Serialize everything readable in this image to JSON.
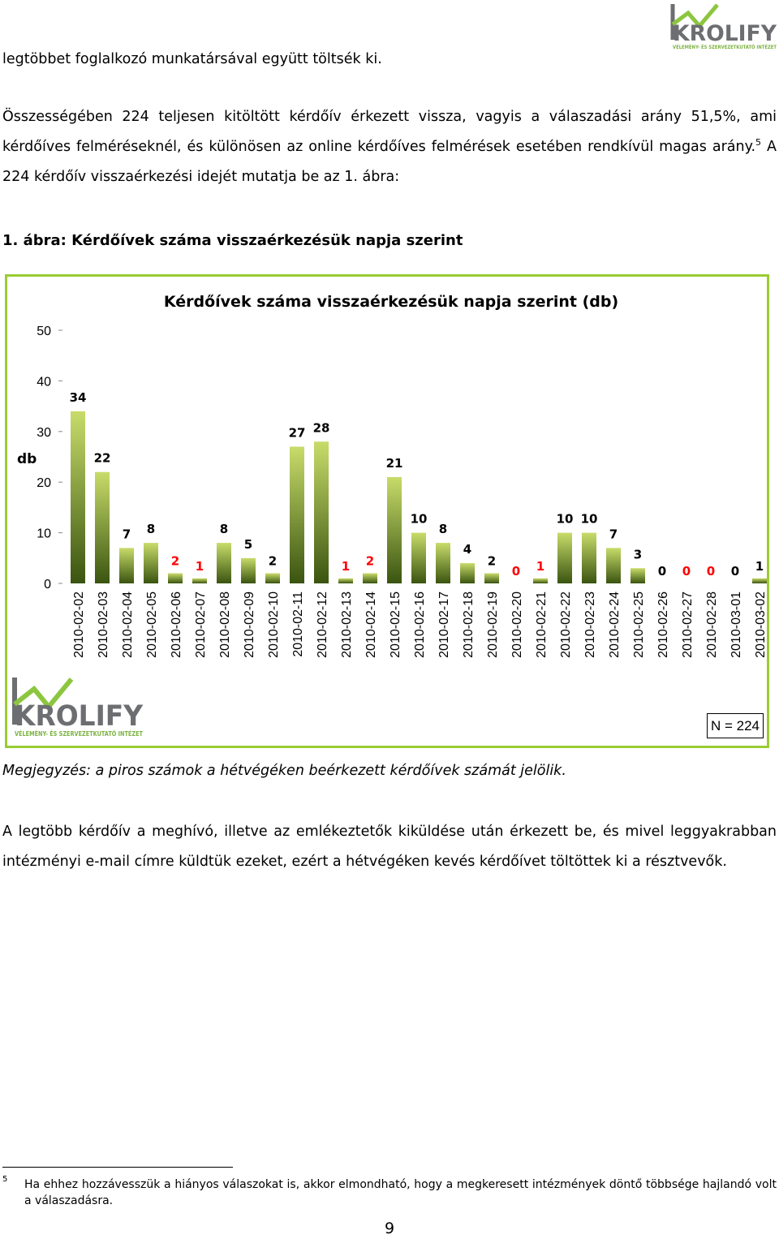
{
  "logo": {
    "name": "KROLIFY",
    "tagline": "VÉLEMÉNY- ÉS SZERVEZETKUTATÓ INTÉZET",
    "colors": {
      "gray": "#6d6e71",
      "green": "#8cc63f",
      "tagline": "#7cb342"
    }
  },
  "text": {
    "line1": "legtöbbet foglalkozó munkatársával együtt töltsék ki.",
    "para1_before": "Összességében 224 teljesen kitöltött kérdőív érkezett vissza, vagyis a válaszadási arány 51,5%, ami kérdőíves felméréseknél, és különösen az online kérdőíves felmérések esetében rendkívül magas arány.",
    "para1_sup": "5",
    "para1_after": " A 224 kérdőív visszaérkezési idejét mutatja be az 1. ábra:",
    "figure_caption": "1. ábra: Kérdőívek száma visszaérkezésük napja szerint",
    "note": "Megjegyzés: a piros számok a hétvégéken beérkezett kérdőívek számát jelölik.",
    "para2": "A legtöbb kérdőív a meghívó, illetve az emlékeztetők kiküldése után érkezett be, és mivel leggyakrabban intézményi e-mail címre küldtük ezeket, ezért a hétvégéken kevés kérdőívet töltöttek ki a résztvevők.",
    "footnote_number": "5",
    "footnote_text": "Ha ehhez hozzávesszük a hiányos válaszokat is, akkor elmondható, hogy a megkeresett intézmények döntő többsége hajlandó volt a válaszadásra.",
    "page_number": "9"
  },
  "chart_data": {
    "type": "bar",
    "title": "Kérdőívek száma visszaérkezésük napja szerint (db)",
    "ylabel": "db",
    "xlabel": "",
    "ylim": [
      0,
      50
    ],
    "yticks": [
      0,
      10,
      20,
      30,
      40,
      50
    ],
    "grid": false,
    "n_label": "N = 224",
    "categories": [
      "2010-02-02",
      "2010-02-03",
      "2010-02-04",
      "2010-02-05",
      "2010-02-06",
      "2010-02-07",
      "2010-02-08",
      "2010-02-09",
      "2010-02-10",
      "2010-02-11",
      "2010-02-12",
      "2010-02-13",
      "2010-02-14",
      "2010-02-15",
      "2010-02-16",
      "2010-02-17",
      "2010-02-18",
      "2010-02-19",
      "2010-02-20",
      "2010-02-21",
      "2010-02-22",
      "2010-02-23",
      "2010-02-24",
      "2010-02-25",
      "2010-02-26",
      "2010-02-27",
      "2010-02-28",
      "2010-03-01",
      "2010-03-02"
    ],
    "values": [
      34,
      22,
      7,
      8,
      2,
      1,
      8,
      5,
      2,
      27,
      28,
      1,
      2,
      21,
      10,
      8,
      4,
      2,
      0,
      1,
      10,
      10,
      7,
      3,
      0,
      0,
      0,
      0,
      1
    ],
    "weekend": [
      false,
      false,
      false,
      false,
      true,
      true,
      false,
      false,
      false,
      false,
      false,
      true,
      true,
      false,
      false,
      false,
      false,
      false,
      true,
      true,
      false,
      false,
      false,
      false,
      false,
      true,
      true,
      false,
      false
    ],
    "colors": {
      "bar_top": "#c8dc6a",
      "bar_bottom": "#3a5410",
      "weekday_label": "#000000",
      "weekend_label": "#ff0000",
      "frame": "#99cc33"
    }
  }
}
